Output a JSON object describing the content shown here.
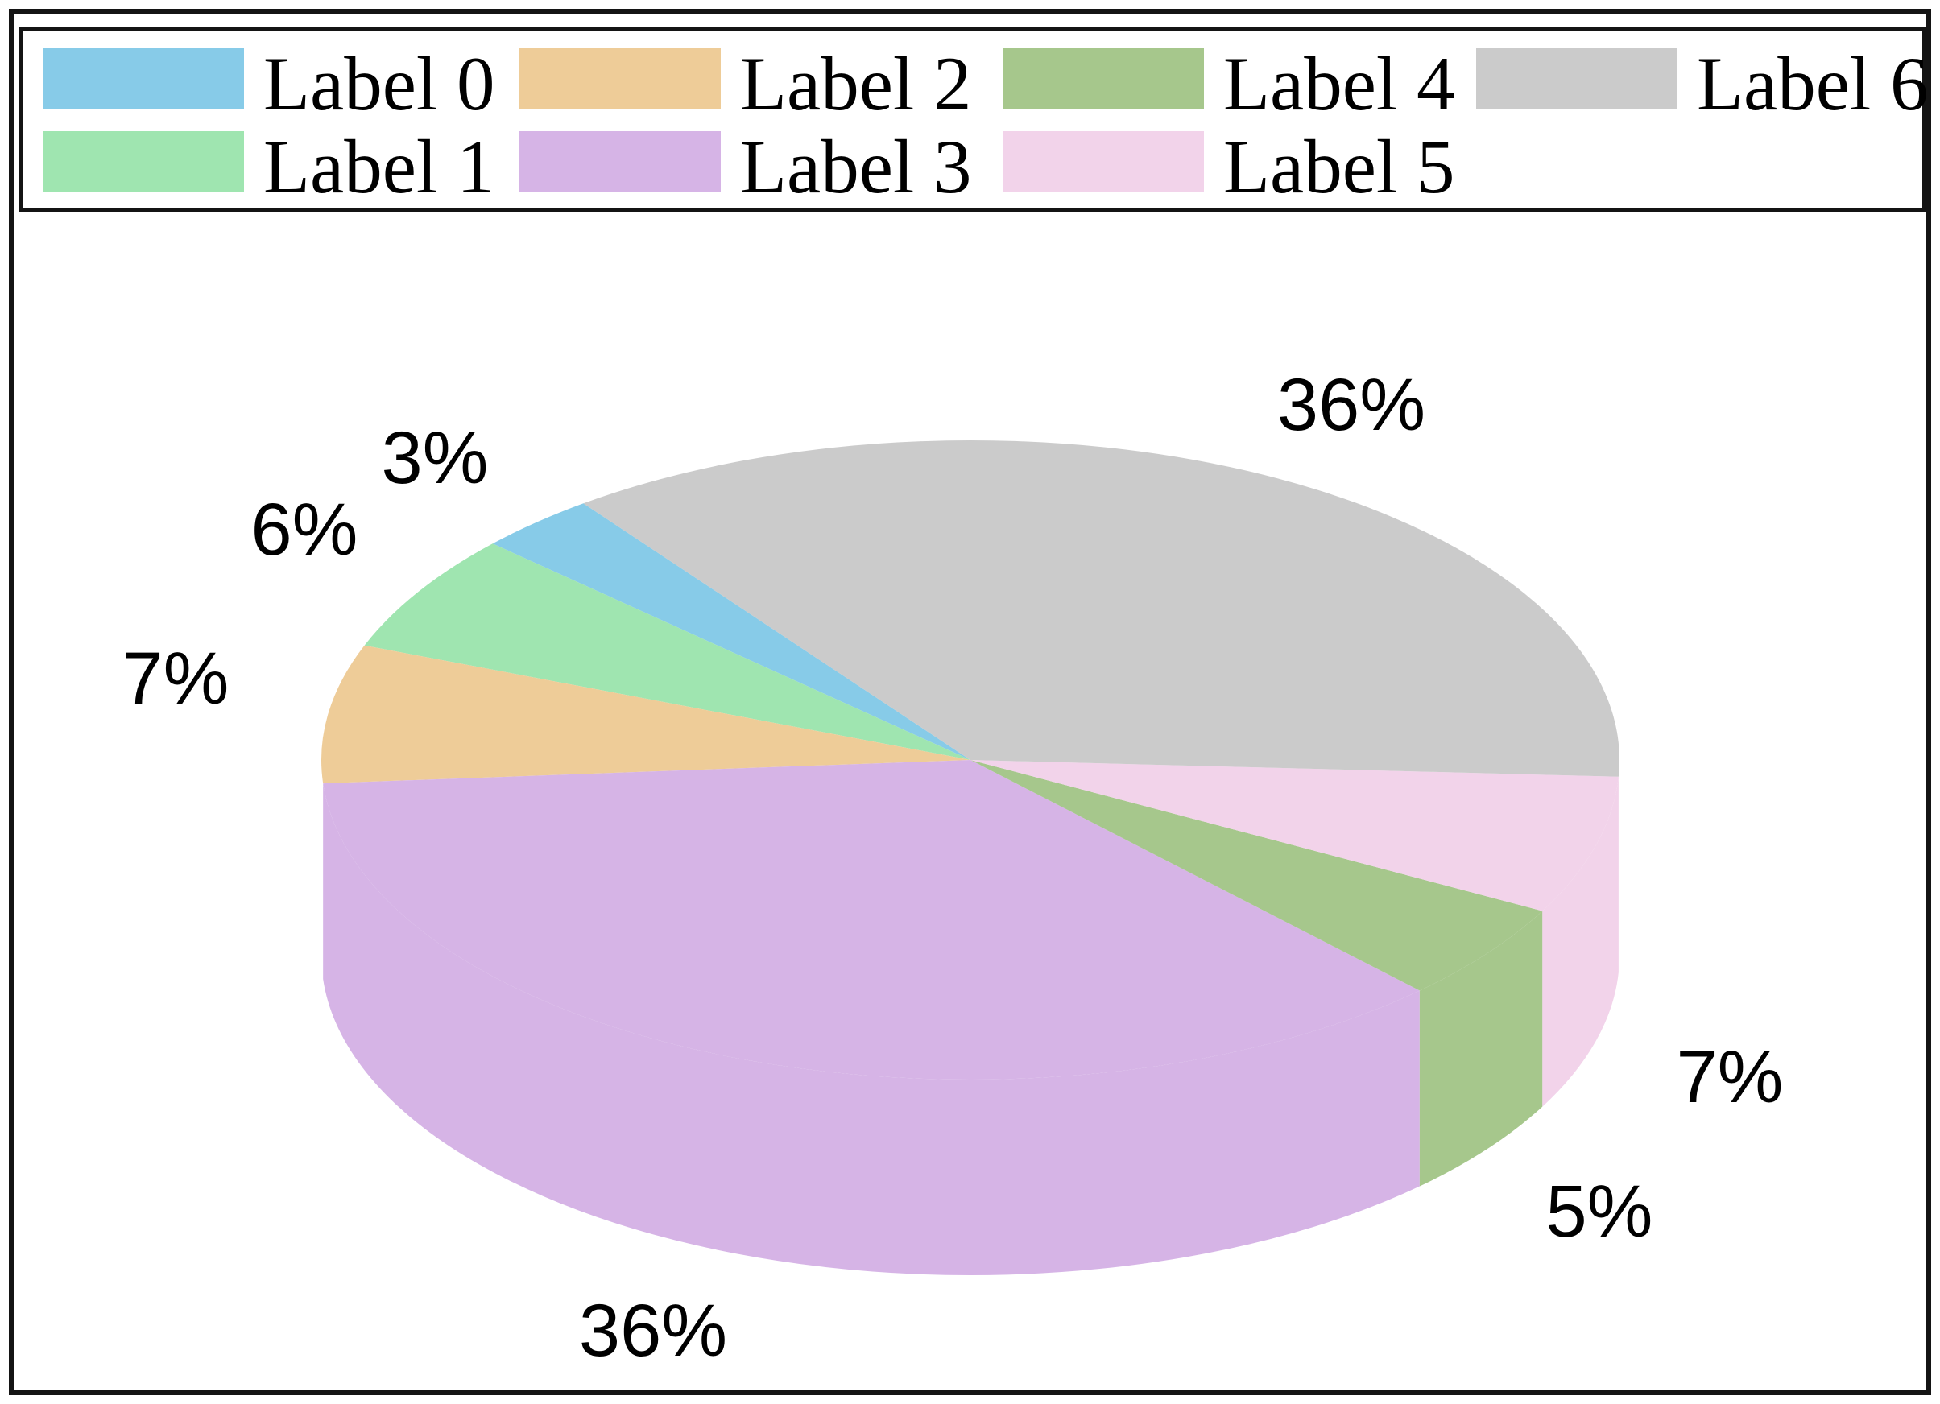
{
  "figure": {
    "background": "#ffffff",
    "border_color": "#141414"
  },
  "legend": {
    "position": "top",
    "columns": 4,
    "items": [
      {
        "label": "Label 0",
        "color": "#87CBE8"
      },
      {
        "label": "Label 1",
        "color": "#9FE5B0"
      },
      {
        "label": "Label 2",
        "color": "#EECC98"
      },
      {
        "label": "Label 3",
        "color": "#D6B4E6"
      },
      {
        "label": "Label 4",
        "color": "#A6C78C"
      },
      {
        "label": "Label 5",
        "color": "#F2D3EA"
      },
      {
        "label": "Label 6",
        "color": "#CBCBCB"
      }
    ]
  },
  "chart_data": {
    "type": "pie",
    "title": "",
    "labels": [
      "Label 0",
      "Label 1",
      "Label 2",
      "Label 3",
      "Label 4",
      "Label 5",
      "Label 6"
    ],
    "values": [
      3,
      6,
      7,
      36,
      5,
      7,
      36
    ],
    "unit": "percent",
    "colors": [
      "#87CBE8",
      "#9FE5B0",
      "#EECC98",
      "#D6B4E6",
      "#A6C78C",
      "#F2D3EA",
      "#CBCBCB"
    ],
    "pct_labels": [
      "3%",
      "6%",
      "7%",
      "36%",
      "5%",
      "7%",
      "36%"
    ],
    "style": "3d-extruded-ellipse",
    "start_angle_deg": 126.6,
    "counterclockwise": true,
    "legend_position": "upper center",
    "legend_ncol": 4,
    "grid": false
  }
}
